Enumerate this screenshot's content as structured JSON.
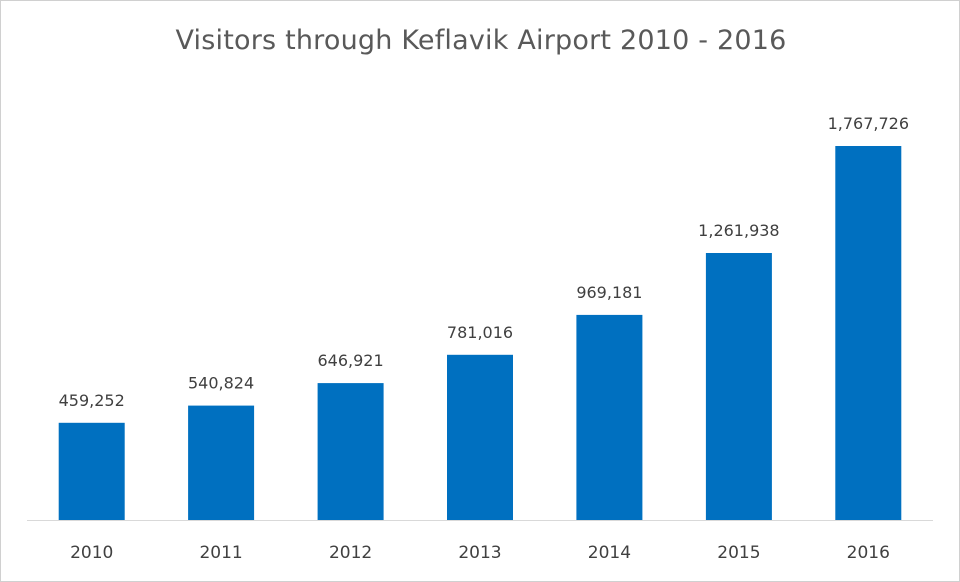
{
  "chart_data": {
    "type": "bar",
    "title": "Visitors through Keflavik Airport 2010 - 2016",
    "categories": [
      "2010",
      "2011",
      "2012",
      "2013",
      "2014",
      "2015",
      "2016"
    ],
    "values": [
      459252,
      540824,
      646921,
      781016,
      969181,
      1261938,
      1767726
    ],
    "value_labels": [
      "459,252",
      "540,824",
      "646,921",
      "781,016",
      "969,181",
      "1,261,938",
      "1,767,726"
    ],
    "ylim": [
      0,
      2000000
    ],
    "grid": false,
    "legend": "none",
    "bar_color": "#0070C0",
    "axis_color": "#d9d9d9"
  }
}
